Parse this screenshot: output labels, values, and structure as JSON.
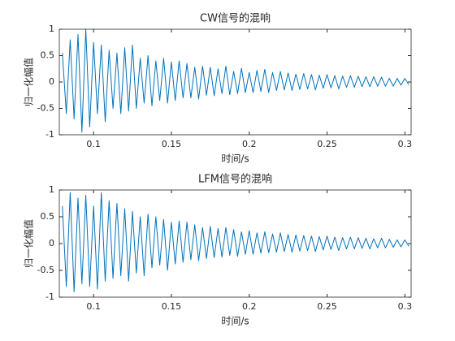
{
  "chart_data": [
    {
      "type": "line",
      "title": "CW信号的混响",
      "xlabel": "时间/s",
      "ylabel": "归一化幅值",
      "color": "#0072bd",
      "xlim": [
        0.078,
        0.304
      ],
      "ylim": [
        -1,
        1
      ],
      "xticks": [
        0.1,
        0.15,
        0.2,
        0.25,
        0.3
      ],
      "yticks": [
        -1,
        -0.5,
        0,
        0.5,
        1
      ],
      "x": [
        0.08,
        0.0825,
        0.085,
        0.0875,
        0.09,
        0.0925,
        0.095,
        0.0975,
        0.1,
        0.1025,
        0.105,
        0.1075,
        0.11,
        0.1125,
        0.115,
        0.1175,
        0.12,
        0.1225,
        0.125,
        0.1275,
        0.13,
        0.1325,
        0.135,
        0.1375,
        0.14,
        0.1425,
        0.145,
        0.1475,
        0.15,
        0.1525,
        0.155,
        0.1575,
        0.16,
        0.1625,
        0.165,
        0.1675,
        0.17,
        0.1725,
        0.175,
        0.1775,
        0.18,
        0.1825,
        0.185,
        0.1875,
        0.19,
        0.1925,
        0.195,
        0.1975,
        0.2,
        0.2025,
        0.205,
        0.2075,
        0.21,
        0.2125,
        0.215,
        0.2175,
        0.22,
        0.2225,
        0.225,
        0.2275,
        0.23,
        0.2325,
        0.235,
        0.2375,
        0.24,
        0.2425,
        0.245,
        0.2475,
        0.25,
        0.2525,
        0.255,
        0.2575,
        0.26,
        0.2625,
        0.265,
        0.2675,
        0.27,
        0.2725,
        0.275,
        0.2775,
        0.28,
        0.2825,
        0.285,
        0.2875,
        0.29,
        0.2925,
        0.295,
        0.2975,
        0.3,
        0.3025
      ],
      "values": [
        0.55,
        -0.6,
        0.8,
        -0.7,
        0.9,
        -0.95,
        1.0,
        -0.85,
        0.75,
        -0.6,
        0.7,
        -0.75,
        0.6,
        -0.5,
        0.55,
        -0.6,
        0.65,
        -0.55,
        0.7,
        -0.5,
        0.45,
        -0.4,
        0.5,
        -0.45,
        0.4,
        -0.35,
        0.45,
        -0.4,
        0.38,
        -0.35,
        0.4,
        -0.3,
        0.35,
        -0.3,
        0.28,
        -0.32,
        0.3,
        -0.25,
        0.28,
        -0.26,
        0.25,
        -0.22,
        0.3,
        -0.24,
        0.2,
        -0.22,
        0.26,
        -0.2,
        0.18,
        -0.2,
        0.22,
        -0.18,
        0.24,
        -0.2,
        0.18,
        -0.16,
        0.2,
        -0.15,
        0.17,
        -0.16,
        0.15,
        -0.14,
        0.16,
        -0.13,
        0.14,
        -0.15,
        0.13,
        -0.12,
        0.14,
        -0.11,
        0.12,
        -0.13,
        0.11,
        -0.1,
        0.12,
        -0.1,
        0.11,
        -0.09,
        0.1,
        -0.09,
        0.1,
        -0.08,
        0.09,
        -0.08,
        0.07,
        -0.08,
        0.07,
        -0.06,
        0.07,
        -0.05
      ]
    },
    {
      "type": "line",
      "title": "LFM信号的混响",
      "xlabel": "时间/s",
      "ylabel": "归一化幅值",
      "color": "#0072bd",
      "xlim": [
        0.078,
        0.304
      ],
      "ylim": [
        -1,
        1
      ],
      "xticks": [
        0.1,
        0.15,
        0.2,
        0.25,
        0.3
      ],
      "yticks": [
        -1,
        -0.5,
        0,
        0.5,
        1
      ],
      "x": [
        0.08,
        0.0825,
        0.085,
        0.0875,
        0.09,
        0.0925,
        0.095,
        0.0975,
        0.1,
        0.1025,
        0.105,
        0.1075,
        0.11,
        0.1125,
        0.115,
        0.1175,
        0.12,
        0.1225,
        0.125,
        0.1275,
        0.13,
        0.1325,
        0.135,
        0.1375,
        0.14,
        0.1425,
        0.145,
        0.1475,
        0.15,
        0.1525,
        0.155,
        0.1575,
        0.16,
        0.1625,
        0.165,
        0.1675,
        0.17,
        0.1725,
        0.175,
        0.1775,
        0.18,
        0.1825,
        0.185,
        0.1875,
        0.19,
        0.1925,
        0.195,
        0.1975,
        0.2,
        0.2025,
        0.205,
        0.2075,
        0.21,
        0.2125,
        0.215,
        0.2175,
        0.22,
        0.2225,
        0.225,
        0.2275,
        0.23,
        0.2325,
        0.235,
        0.2375,
        0.24,
        0.2425,
        0.245,
        0.2475,
        0.25,
        0.2525,
        0.255,
        0.2575,
        0.26,
        0.2625,
        0.265,
        0.2675,
        0.27,
        0.2725,
        0.275,
        0.2775,
        0.28,
        0.2825,
        0.285,
        0.2875,
        0.29,
        0.2925,
        0.295,
        0.2975,
        0.3,
        0.3025
      ],
      "values": [
        0.7,
        -0.8,
        0.95,
        -0.9,
        0.85,
        -0.75,
        0.9,
        -0.8,
        0.7,
        -0.85,
        0.95,
        -0.7,
        0.8,
        -0.65,
        0.75,
        -0.6,
        0.65,
        -0.7,
        0.6,
        -0.55,
        0.5,
        -0.6,
        0.55,
        -0.45,
        0.5,
        -0.4,
        0.45,
        -0.5,
        0.4,
        -0.38,
        0.42,
        -0.35,
        0.4,
        -0.3,
        0.35,
        -0.32,
        0.3,
        -0.28,
        0.32,
        -0.26,
        0.28,
        -0.25,
        0.3,
        -0.22,
        0.26,
        -0.24,
        0.22,
        -0.2,
        0.24,
        -0.2,
        0.2,
        -0.18,
        0.22,
        -0.17,
        0.18,
        -0.16,
        0.2,
        -0.15,
        0.17,
        -0.16,
        0.16,
        -0.14,
        0.15,
        -0.13,
        0.14,
        -0.15,
        0.13,
        -0.12,
        0.14,
        -0.11,
        0.12,
        -0.13,
        0.11,
        -0.1,
        0.12,
        -0.1,
        0.11,
        -0.09,
        0.1,
        -0.1,
        0.09,
        -0.08,
        0.1,
        -0.08,
        0.08,
        -0.07,
        0.07,
        -0.06,
        0.07,
        -0.05
      ]
    }
  ]
}
